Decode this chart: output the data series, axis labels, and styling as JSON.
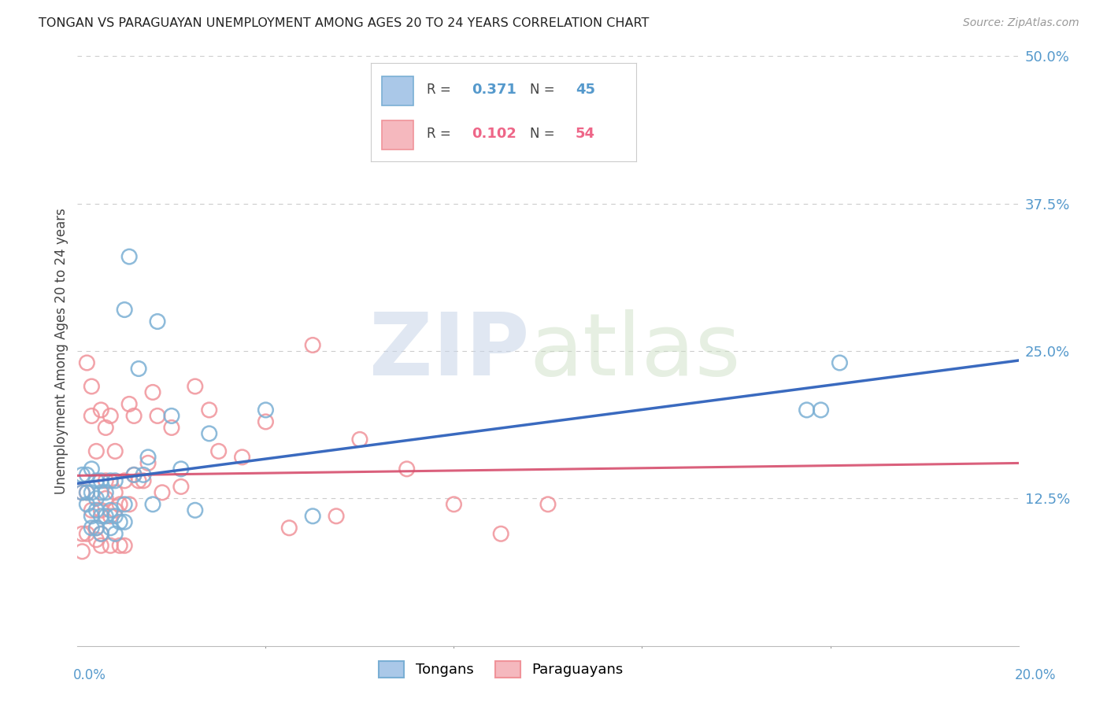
{
  "title": "TONGAN VS PARAGUAYAN UNEMPLOYMENT AMONG AGES 20 TO 24 YEARS CORRELATION CHART",
  "source": "Source: ZipAtlas.com",
  "ylabel": "Unemployment Among Ages 20 to 24 years",
  "xlim": [
    0.0,
    0.2
  ],
  "ylim": [
    0.0,
    0.5
  ],
  "yticks": [
    0.0,
    0.125,
    0.25,
    0.375,
    0.5
  ],
  "ytick_labels": [
    "",
    "12.5%",
    "25.0%",
    "37.5%",
    "50.0%"
  ],
  "background_color": "#ffffff",
  "grid_color": "#cccccc",
  "tongan_color": "#7aafd4",
  "paraguayan_color": "#f0939a",
  "trendline_tongan_color": "#3a6abf",
  "trendline_paraguayan_color": "#d64f6e",
  "tongan_R": "0.371",
  "tongan_N": "45",
  "paraguayan_R": "0.102",
  "paraguayan_N": "54",
  "tongan_x": [
    0.001,
    0.001,
    0.002,
    0.002,
    0.002,
    0.003,
    0.003,
    0.003,
    0.003,
    0.004,
    0.004,
    0.004,
    0.004,
    0.005,
    0.005,
    0.005,
    0.005,
    0.006,
    0.006,
    0.007,
    0.007,
    0.007,
    0.008,
    0.008,
    0.008,
    0.009,
    0.01,
    0.01,
    0.01,
    0.011,
    0.012,
    0.013,
    0.014,
    0.015,
    0.016,
    0.017,
    0.02,
    0.022,
    0.025,
    0.028,
    0.04,
    0.05,
    0.155,
    0.158,
    0.162
  ],
  "tongan_y": [
    0.13,
    0.145,
    0.12,
    0.13,
    0.145,
    0.1,
    0.11,
    0.13,
    0.15,
    0.1,
    0.115,
    0.125,
    0.14,
    0.095,
    0.11,
    0.13,
    0.14,
    0.11,
    0.13,
    0.1,
    0.115,
    0.14,
    0.095,
    0.11,
    0.14,
    0.105,
    0.105,
    0.12,
    0.285,
    0.33,
    0.145,
    0.235,
    0.145,
    0.16,
    0.12,
    0.275,
    0.195,
    0.15,
    0.115,
    0.18,
    0.2,
    0.11,
    0.2,
    0.2,
    0.24
  ],
  "paraguayan_x": [
    0.001,
    0.001,
    0.001,
    0.002,
    0.002,
    0.002,
    0.003,
    0.003,
    0.003,
    0.004,
    0.004,
    0.004,
    0.005,
    0.005,
    0.005,
    0.005,
    0.006,
    0.006,
    0.006,
    0.007,
    0.007,
    0.007,
    0.008,
    0.008,
    0.008,
    0.009,
    0.009,
    0.01,
    0.01,
    0.011,
    0.011,
    0.012,
    0.012,
    0.013,
    0.014,
    0.015,
    0.016,
    0.017,
    0.018,
    0.02,
    0.022,
    0.025,
    0.028,
    0.03,
    0.035,
    0.04,
    0.045,
    0.05,
    0.055,
    0.06,
    0.07,
    0.08,
    0.09,
    0.1
  ],
  "paraguayan_y": [
    0.08,
    0.095,
    0.13,
    0.095,
    0.13,
    0.24,
    0.115,
    0.195,
    0.22,
    0.09,
    0.1,
    0.165,
    0.085,
    0.095,
    0.115,
    0.2,
    0.125,
    0.14,
    0.185,
    0.085,
    0.11,
    0.195,
    0.115,
    0.13,
    0.165,
    0.085,
    0.12,
    0.085,
    0.14,
    0.12,
    0.205,
    0.145,
    0.195,
    0.14,
    0.14,
    0.155,
    0.215,
    0.195,
    0.13,
    0.185,
    0.135,
    0.22,
    0.2,
    0.165,
    0.16,
    0.19,
    0.1,
    0.255,
    0.11,
    0.175,
    0.15,
    0.12,
    0.095,
    0.12
  ]
}
